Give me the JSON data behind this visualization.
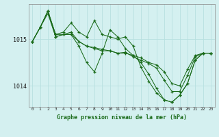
{
  "title": "Graphe pression niveau de la mer (hPa)",
  "bg_color": "#d4f0f0",
  "grid_color": "#b8e0e0",
  "line_color": "#1a6b1a",
  "xlim": [
    -0.5,
    23.5
  ],
  "ylim": [
    1013.55,
    1015.75
  ],
  "yticks": [
    1014,
    1015
  ],
  "xticks": [
    0,
    1,
    2,
    3,
    4,
    5,
    6,
    7,
    8,
    9,
    10,
    11,
    12,
    13,
    14,
    15,
    16,
    17,
    18,
    19,
    20,
    21,
    22,
    23
  ],
  "series": [
    [
      1014.95,
      1015.25,
      1015.55,
      1015.05,
      1015.1,
      1015.1,
      1014.95,
      1014.85,
      1014.8,
      1014.75,
      1014.75,
      1014.7,
      1014.7,
      1014.65,
      1014.6,
      1014.5,
      1014.45,
      1014.3,
      1014.05,
      1014.0,
      1014.35,
      1014.65,
      1014.7,
      1014.7
    ],
    [
      1014.95,
      1015.25,
      1015.6,
      1015.1,
      1015.1,
      1015.1,
      1014.85,
      1014.5,
      1014.3,
      1014.7,
      1015.2,
      1015.05,
      1014.8,
      1014.65,
      1014.5,
      1014.25,
      1013.95,
      1013.7,
      1013.65,
      1013.8,
      1014.05,
      1014.55,
      1014.7,
      1014.7
    ],
    [
      1014.95,
      1015.25,
      1015.6,
      1015.1,
      1015.15,
      1015.35,
      1015.15,
      1015.05,
      1015.4,
      1015.1,
      1015.05,
      1015.0,
      1015.05,
      1014.85,
      1014.4,
      1014.1,
      1013.85,
      1013.7,
      1013.65,
      1013.8,
      1014.05,
      1014.55,
      1014.7,
      1014.7
    ],
    [
      1014.95,
      1015.25,
      1015.6,
      1015.05,
      1015.1,
      1015.15,
      1014.95,
      1014.85,
      1014.82,
      1014.78,
      1014.75,
      1014.7,
      1014.72,
      1014.62,
      1014.55,
      1014.48,
      1014.38,
      1014.12,
      1013.88,
      1013.88,
      1014.22,
      1014.62,
      1014.7,
      1014.7
    ]
  ]
}
